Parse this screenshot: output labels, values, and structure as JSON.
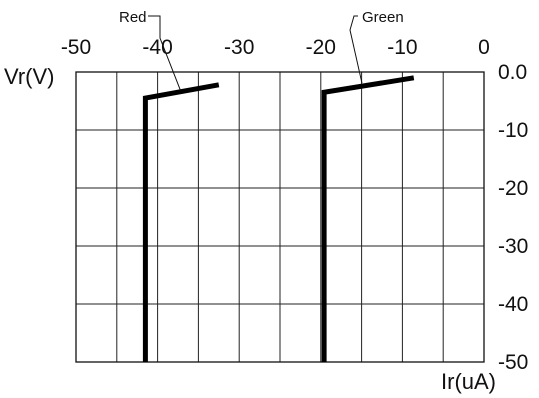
{
  "chart_data": {
    "type": "line",
    "title": "",
    "xlabel": "Ir(uA)",
    "ylabel": "Vr(V)",
    "xlim": [
      -50,
      0
    ],
    "ylim": [
      -50,
      0
    ],
    "xticks": [
      -50,
      -40,
      -30,
      -20,
      -10,
      0
    ],
    "yticks": [
      0,
      -10,
      -20,
      -30,
      -40,
      -50
    ],
    "xtick_labels": [
      "-50",
      "-40",
      "-30",
      "-20",
      "-10",
      "0"
    ],
    "ytick_labels": [
      "0.0",
      "-10",
      "-20",
      "-30",
      "-40",
      "-50"
    ],
    "x_axis_position": "top",
    "y_axis_position": "right",
    "grid": true,
    "grid_x_step": 5,
    "grid_y_step": 10,
    "series": [
      {
        "name": "Red",
        "color": "#000000",
        "points": [
          [
            -41.5,
            -50
          ],
          [
            -41.5,
            -4.5
          ],
          [
            -32.5,
            -2.2
          ]
        ]
      },
      {
        "name": "Green",
        "color": "#000000",
        "points": [
          [
            -19.6,
            -50
          ],
          [
            -19.6,
            -3.5
          ],
          [
            -8.6,
            -1.0
          ]
        ]
      }
    ]
  }
}
